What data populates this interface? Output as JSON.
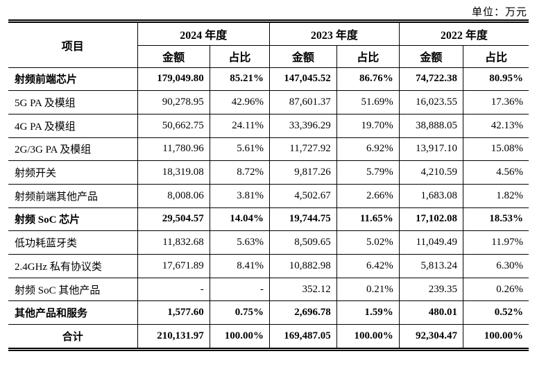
{
  "unit_label": "单位：万元",
  "table": {
    "item_header": "项目",
    "year_headers": [
      "2024 年度",
      "2023 年度",
      "2022 年度"
    ],
    "sub_headers": [
      "金额",
      "占比"
    ],
    "rows": [
      {
        "label": "射频前端芯片",
        "bold": true,
        "center": false,
        "values": [
          "179,049.80",
          "85.21%",
          "147,045.52",
          "86.76%",
          "74,722.38",
          "80.95%"
        ]
      },
      {
        "label": "5G PA 及模组",
        "bold": false,
        "center": false,
        "values": [
          "90,278.95",
          "42.96%",
          "87,601.37",
          "51.69%",
          "16,023.55",
          "17.36%"
        ]
      },
      {
        "label": "4G PA 及模组",
        "bold": false,
        "center": false,
        "values": [
          "50,662.75",
          "24.11%",
          "33,396.29",
          "19.70%",
          "38,888.05",
          "42.13%"
        ]
      },
      {
        "label": "2G/3G PA 及模组",
        "bold": false,
        "center": false,
        "values": [
          "11,780.96",
          "5.61%",
          "11,727.92",
          "6.92%",
          "13,917.10",
          "15.08%"
        ]
      },
      {
        "label": "射频开关",
        "bold": false,
        "center": false,
        "values": [
          "18,319.08",
          "8.72%",
          "9,817.26",
          "5.79%",
          "4,210.59",
          "4.56%"
        ]
      },
      {
        "label": "射频前端其他产品",
        "bold": false,
        "center": false,
        "values": [
          "8,008.06",
          "3.81%",
          "4,502.67",
          "2.66%",
          "1,683.08",
          "1.82%"
        ]
      },
      {
        "label": "射频 SoC 芯片",
        "bold": true,
        "center": false,
        "values": [
          "29,504.57",
          "14.04%",
          "19,744.75",
          "11.65%",
          "17,102.08",
          "18.53%"
        ]
      },
      {
        "label": "低功耗蓝牙类",
        "bold": false,
        "center": false,
        "values": [
          "11,832.68",
          "5.63%",
          "8,509.65",
          "5.02%",
          "11,049.49",
          "11.97%"
        ]
      },
      {
        "label": "2.4GHz 私有协议类",
        "bold": false,
        "center": false,
        "values": [
          "17,671.89",
          "8.41%",
          "10,882.98",
          "6.42%",
          "5,813.24",
          "6.30%"
        ]
      },
      {
        "label": "射频 SoC 其他产品",
        "bold": false,
        "center": false,
        "values": [
          "-",
          "-",
          "352.12",
          "0.21%",
          "239.35",
          "0.26%"
        ]
      },
      {
        "label": "其他产品和服务",
        "bold": true,
        "center": false,
        "values": [
          "1,577.60",
          "0.75%",
          "2,696.78",
          "1.59%",
          "480.01",
          "0.52%"
        ]
      },
      {
        "label": "合计",
        "bold": true,
        "center": true,
        "values": [
          "210,131.97",
          "100.00%",
          "169,487.05",
          "100.00%",
          "92,304.47",
          "100.00%"
        ]
      }
    ]
  }
}
